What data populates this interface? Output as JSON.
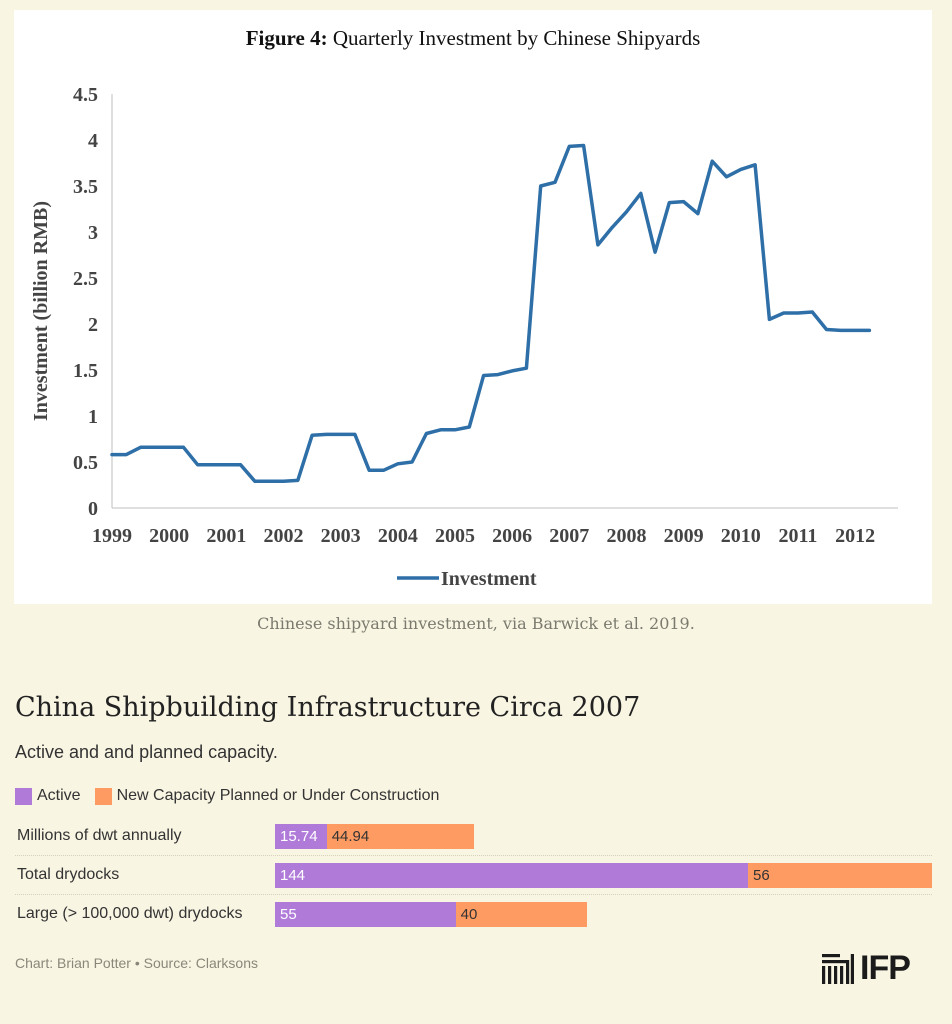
{
  "chart_data": [
    {
      "type": "line",
      "title_bold": "Figure 4:",
      "title": "Quarterly Investment by Chinese Shipyards",
      "ylabel": "Investment (billion RMB)",
      "xlabel": "",
      "ylim": [
        0,
        4.5
      ],
      "yticks": [
        "0",
        "0.5",
        "1",
        "1.5",
        "2",
        "2.5",
        "3",
        "3.5",
        "4",
        "4.5"
      ],
      "xticks": [
        "1999",
        "2000",
        "2001",
        "2002",
        "2003",
        "2004",
        "2005",
        "2006",
        "2007",
        "2008",
        "2009",
        "2010",
        "2011",
        "2012"
      ],
      "grid": false,
      "legend": "bottom",
      "color": "#2e6fa8",
      "series": [
        {
          "name": "Investment",
          "x": [
            1999.0,
            1999.25,
            1999.5,
            1999.75,
            2000.0,
            2000.25,
            2000.5,
            2000.75,
            2001.0,
            2001.25,
            2001.5,
            2001.75,
            2002.0,
            2002.25,
            2002.5,
            2002.75,
            2003.0,
            2003.25,
            2003.5,
            2003.75,
            2004.0,
            2004.25,
            2004.5,
            2004.75,
            2005.0,
            2005.25,
            2005.5,
            2005.75,
            2006.0,
            2006.25,
            2006.5,
            2006.75,
            2007.0,
            2007.25,
            2007.5,
            2007.75,
            2008.0,
            2008.25,
            2008.5,
            2008.75,
            2009.0,
            2009.25,
            2009.5,
            2009.75,
            2010.0,
            2010.25,
            2010.5,
            2010.75,
            2011.0,
            2011.25,
            2011.5,
            2011.75,
            2012.0,
            2012.25
          ],
          "values": [
            0.58,
            0.58,
            0.66,
            0.66,
            0.66,
            0.66,
            0.47,
            0.47,
            0.47,
            0.47,
            0.29,
            0.29,
            0.29,
            0.3,
            0.79,
            0.8,
            0.8,
            0.8,
            0.41,
            0.41,
            0.48,
            0.5,
            0.81,
            0.85,
            0.85,
            0.88,
            1.44,
            1.45,
            1.49,
            1.52,
            3.5,
            3.54,
            3.93,
            3.94,
            2.86,
            3.05,
            3.22,
            3.42,
            2.78,
            3.32,
            3.33,
            3.2,
            3.77,
            3.6,
            3.68,
            3.73,
            2.05,
            2.12,
            2.12,
            2.13,
            1.94,
            1.93,
            1.93,
            1.93
          ]
        }
      ],
      "caption": "Chinese shipyard investment, via Barwick et al. 2019."
    },
    {
      "type": "bar",
      "orientation": "horizontal",
      "stacked": true,
      "title": "China Shipbuilding Infrastructure Circa 2007",
      "subtitle": "Active and and planned capacity.",
      "legend": "top-left",
      "categories": [
        "Millions of dwt annually",
        "Total drydocks",
        "Large (> 100,000 dwt) drydocks"
      ],
      "series": [
        {
          "name": "Active",
          "color": "#b07ad9",
          "values": [
            15.74,
            144,
            55
          ]
        },
        {
          "name": "New Capacity Planned or Under Construction",
          "color": "#fe9b62",
          "values": [
            44.94,
            56,
            40
          ]
        }
      ],
      "value_labels": [
        [
          "15.74",
          "44.94"
        ],
        [
          "144",
          "56"
        ],
        [
          "55",
          "40"
        ]
      ],
      "xlim": [
        0,
        200
      ]
    }
  ],
  "footer": {
    "credit": "Chart: Brian Potter • Source: Clarksons",
    "logo_text": "IFP"
  }
}
